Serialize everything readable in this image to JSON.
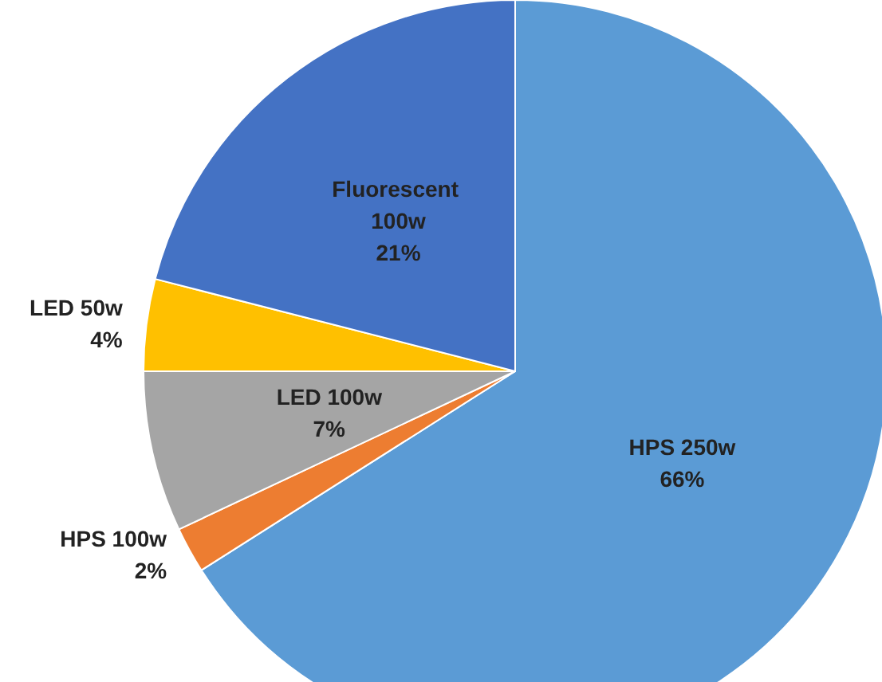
{
  "chart_data": {
    "type": "pie",
    "categories": [
      "HPS 250w",
      "HPS 100w",
      "LED 100w",
      "LED 50w",
      "Fluorescent 100w"
    ],
    "values": [
      66,
      2,
      7,
      4,
      21
    ],
    "colors": [
      "#5b9bd5",
      "#ed7d31",
      "#a5a5a5",
      "#ffc000",
      "#4472c4"
    ],
    "value_labels": [
      "66%",
      "2%",
      "7%",
      "4%",
      "21%"
    ],
    "legend": false
  }
}
